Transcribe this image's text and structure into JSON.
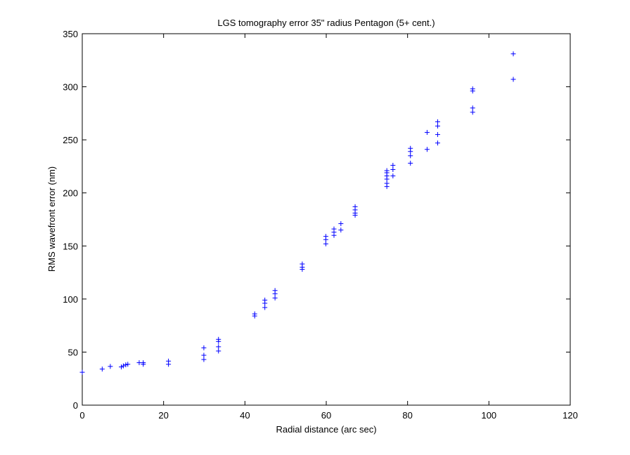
{
  "chart_data": {
    "type": "scatter",
    "title": "LGS tomography error 35\" radius Pentagon (5+ cent.)",
    "xlabel": "Radial distance (arc sec)",
    "ylabel": "RMS wavefront error (nm)",
    "xlim": [
      0,
      120
    ],
    "ylim": [
      0,
      350
    ],
    "xticks": [
      0,
      20,
      40,
      60,
      80,
      100,
      120
    ],
    "yticks": [
      0,
      50,
      100,
      150,
      200,
      250,
      300,
      350
    ],
    "grid": false,
    "marker": "+",
    "color": "#0000ff",
    "series": [
      {
        "points": [
          [
            0,
            31
          ],
          [
            4.9,
            34
          ],
          [
            6.9,
            36.5
          ],
          [
            9.6,
            36
          ],
          [
            10.1,
            37
          ],
          [
            10.7,
            38
          ],
          [
            11.2,
            38.5
          ],
          [
            14.0,
            40
          ],
          [
            15.0,
            38.5
          ],
          [
            15.0,
            40
          ],
          [
            21.2,
            38.5
          ],
          [
            21.2,
            41.5
          ],
          [
            29.9,
            43
          ],
          [
            29.9,
            47
          ],
          [
            29.9,
            54
          ],
          [
            33.5,
            51
          ],
          [
            33.5,
            55
          ],
          [
            33.5,
            60
          ],
          [
            33.5,
            62
          ],
          [
            42.4,
            84
          ],
          [
            42.4,
            86
          ],
          [
            44.9,
            92
          ],
          [
            44.9,
            96
          ],
          [
            44.9,
            99
          ],
          [
            47.4,
            101
          ],
          [
            47.4,
            105
          ],
          [
            47.4,
            108
          ],
          [
            54.1,
            128
          ],
          [
            54.1,
            130
          ],
          [
            54.1,
            133
          ],
          [
            59.9,
            152
          ],
          [
            59.9,
            156
          ],
          [
            59.9,
            159
          ],
          [
            61.9,
            160
          ],
          [
            61.9,
            163
          ],
          [
            61.9,
            166
          ],
          [
            63.6,
            165
          ],
          [
            63.6,
            171
          ],
          [
            67.1,
            179
          ],
          [
            67.1,
            181
          ],
          [
            67.1,
            184
          ],
          [
            67.1,
            187
          ],
          [
            74.9,
            206
          ],
          [
            74.9,
            209
          ],
          [
            74.9,
            213
          ],
          [
            74.9,
            216
          ],
          [
            74.9,
            219
          ],
          [
            74.9,
            221
          ],
          [
            76.4,
            216
          ],
          [
            76.4,
            222
          ],
          [
            76.4,
            226
          ],
          [
            80.7,
            228
          ],
          [
            80.7,
            235
          ],
          [
            80.7,
            239
          ],
          [
            80.7,
            242
          ],
          [
            84.8,
            241
          ],
          [
            84.8,
            257
          ],
          [
            87.4,
            247
          ],
          [
            87.4,
            255
          ],
          [
            87.4,
            263
          ],
          [
            87.4,
            267
          ],
          [
            96.0,
            276
          ],
          [
            96.0,
            280
          ],
          [
            96.0,
            296
          ],
          [
            96.0,
            298
          ],
          [
            106.0,
            307
          ],
          [
            106.0,
            331
          ]
        ]
      }
    ]
  }
}
